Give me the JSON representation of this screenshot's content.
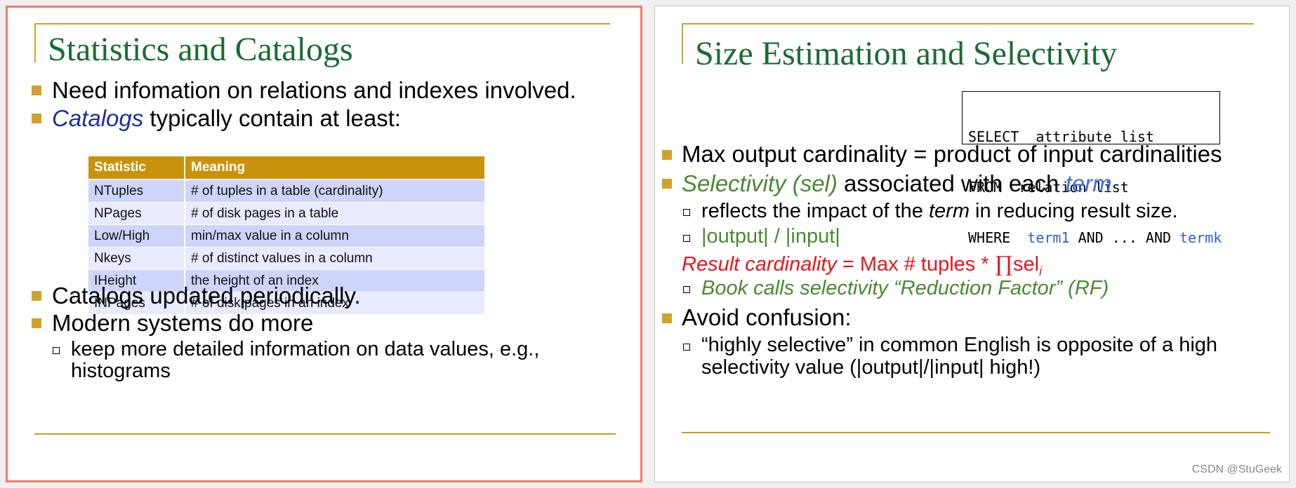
{
  "left_slide": {
    "title": "Statistics and Catalogs",
    "bullets": {
      "b1": "Need infomation on relations and indexes involved.",
      "b2_em": "Catalogs",
      "b2_rest": " typically contain at least:",
      "b3": "Catalogs updated periodically.",
      "b4": "Modern systems do more",
      "sub1_line1": "keep more detailed information on data values, e.g.,",
      "sub1_line2": "histograms"
    },
    "table": {
      "headers": [
        "Statistic",
        "Meaning"
      ],
      "rows": [
        [
          "NTuples",
          "# of tuples in a table (cardinality)"
        ],
        [
          "NPages",
          "# of disk pages in a table"
        ],
        [
          "Low/High",
          "min/max value in a column"
        ],
        [
          "Nkeys",
          "# of distinct values in a column"
        ],
        [
          "IHeight",
          "the height of an index"
        ],
        [
          "INPages",
          "# of disk pages in an index"
        ]
      ]
    }
  },
  "right_slide": {
    "title": "Size Estimation and Selectivity",
    "sql": {
      "l1_kw": "SELECT",
      "l1_rest": "  attribute list",
      "l2_kw": "FROM",
      "l2_rest": "  relation list",
      "l3_kw": "WHERE",
      "l3_sp": "  ",
      "l3_t1": "term1",
      "l3_mid": " AND ... AND ",
      "l3_tk": "termk"
    },
    "bullets": {
      "b1": "Max output cardinality = product of input cardinalities",
      "b2_em": "Selectivity (sel)",
      "b2_mid": " associated with each ",
      "b2_term": "term",
      "s1_pre": "reflects the impact of the ",
      "s1_em": "term",
      "s1_post": " in reducing result size.",
      "s2": "|output| / |input|",
      "rc_em": "Result cardinality",
      "rc_rest": " = Max # tuples  *  ",
      "rc_prod": "∏",
      "rc_sel": "sel",
      "rc_sub": "i",
      "s3": "Book calls selectivity “Reduction Factor” (RF)",
      "b3": "Avoid confusion:",
      "s4_line1": " “highly selective” in common English is opposite of a high",
      "s4_line2": "selectivity value (|output|/|input| high!)"
    }
  },
  "watermark": "CSDN @StuGeek"
}
